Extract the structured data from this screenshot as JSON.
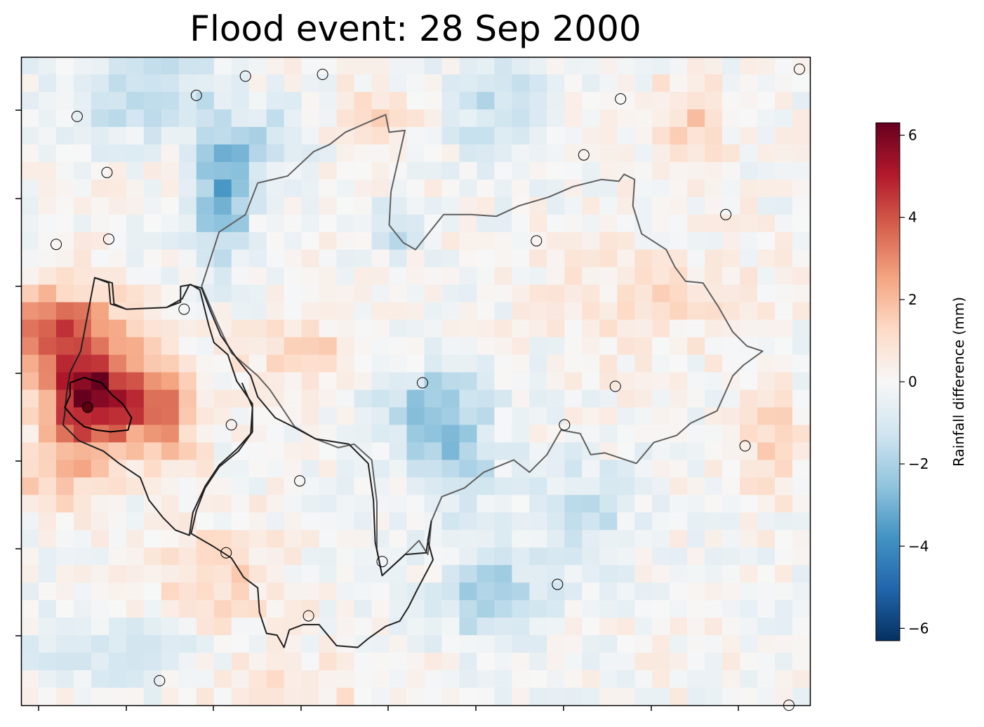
{
  "chart_data": {
    "type": "heatmap",
    "title": "Flood event: 28 Sep 2000",
    "xlabel": "",
    "ylabel": "",
    "grid": false,
    "grid_size": {
      "cols": 45,
      "rows": 37
    },
    "colormap": "RdBu_r",
    "colorbar": {
      "label": "Rainfall difference (mm)",
      "range": [
        -6.3,
        6.3
      ],
      "ticks": [
        -6,
        -4,
        -2,
        0,
        2,
        4,
        6
      ],
      "tick_labels": [
        "−6",
        "−4",
        "−2",
        "0",
        "2",
        "4",
        "6"
      ]
    },
    "hotspots": [
      {
        "col": 4,
        "row": 19.5,
        "value": 6.0,
        "spread_cols": 2.6,
        "spread_rows": 2.8,
        "description": "maximum positive difference"
      },
      {
        "col": 2,
        "row": 15.5,
        "value": 3.6,
        "spread_cols": 3.5,
        "spread_rows": 2.5
      },
      {
        "col": 8,
        "row": 20,
        "value": 3.0,
        "spread_cols": 2.2,
        "spread_rows": 3.0
      },
      {
        "col": 2,
        "row": 24,
        "value": 1.8,
        "spread_cols": 2.5,
        "spread_rows": 2
      },
      {
        "col": 11.5,
        "row": 8,
        "value": -3.2,
        "spread_cols": 1.6,
        "spread_rows": 3.5
      },
      {
        "col": 7,
        "row": 2,
        "value": -2.0,
        "spread_cols": 4,
        "spread_rows": 2.5
      },
      {
        "col": 14,
        "row": 5,
        "value": -1.6,
        "spread_cols": 3,
        "spread_rows": 2
      },
      {
        "col": 27,
        "row": 3,
        "value": -1.5,
        "spread_cols": 3,
        "spread_rows": 3
      },
      {
        "col": 21,
        "row": 10,
        "value": -1.8,
        "spread_cols": 1.3,
        "spread_rows": 1.3
      },
      {
        "col": 24.5,
        "row": 22,
        "value": -2.4,
        "spread_cols": 2.5,
        "spread_rows": 4
      },
      {
        "col": 22,
        "row": 20,
        "value": -1.4,
        "spread_cols": 3,
        "spread_rows": 2
      },
      {
        "col": 27,
        "row": 31,
        "value": -2.3,
        "spread_cols": 3,
        "spread_rows": 2.5
      },
      {
        "col": 32,
        "row": 26,
        "value": -1.5,
        "spread_cols": 3,
        "spread_rows": 3
      },
      {
        "col": 6,
        "row": 34,
        "value": -1.0,
        "spread_cols": 6,
        "spread_rows": 2
      },
      {
        "col": 38,
        "row": 4,
        "value": 1.5,
        "spread_cols": 2,
        "spread_rows": 3
      },
      {
        "col": 36,
        "row": 14,
        "value": 1.0,
        "spread_cols": 5,
        "spread_rows": 3
      },
      {
        "col": 16,
        "row": 17,
        "value": 1.5,
        "spread_cols": 3,
        "spread_rows": 2
      },
      {
        "col": 20,
        "row": 4,
        "value": 1.1,
        "spread_cols": 3,
        "spread_rows": 2
      },
      {
        "col": 11,
        "row": 30,
        "value": 1.3,
        "spread_cols": 4,
        "spread_rows": 3
      },
      {
        "col": 15,
        "row": 36,
        "value": 1.0,
        "spread_cols": 5,
        "spread_rows": 2
      },
      {
        "col": 43,
        "row": 22,
        "value": 1.2,
        "spread_cols": 2,
        "spread_rows": 3
      }
    ],
    "stations": [
      {
        "col": 12.8,
        "row": 1.1
      },
      {
        "col": 17.2,
        "row": 1.0
      },
      {
        "col": 44.4,
        "row": 0.7
      },
      {
        "col": 10.0,
        "row": 2.2
      },
      {
        "col": 34.2,
        "row": 2.4
      },
      {
        "col": 3.2,
        "row": 3.4
      },
      {
        "col": 32.1,
        "row": 5.6
      },
      {
        "col": 4.9,
        "row": 6.6
      },
      {
        "col": 40.2,
        "row": 9.0
      },
      {
        "col": 2.0,
        "row": 10.7
      },
      {
        "col": 5.0,
        "row": 10.4
      },
      {
        "col": 29.4,
        "row": 10.5
      },
      {
        "col": 9.3,
        "row": 14.4
      },
      {
        "col": 22.9,
        "row": 18.6
      },
      {
        "col": 33.9,
        "row": 18.8
      },
      {
        "col": 3.8,
        "row": 20.0,
        "fill": "#5a0011"
      },
      {
        "col": 12.0,
        "row": 21.0
      },
      {
        "col": 31.0,
        "row": 21.0
      },
      {
        "col": 41.3,
        "row": 22.2
      },
      {
        "col": 15.9,
        "row": 24.2
      },
      {
        "col": 11.7,
        "row": 28.3
      },
      {
        "col": 20.6,
        "row": 28.8
      },
      {
        "col": 30.6,
        "row": 30.1
      },
      {
        "col": 16.4,
        "row": 31.9
      },
      {
        "col": 7.9,
        "row": 35.6
      },
      {
        "col": 43.8,
        "row": 37.0
      }
    ],
    "catchments": [
      {
        "name": "",
        "color": "#5f5f5f",
        "points": [
          [
            10.3,
            13.1
          ],
          [
            11.3,
            10.0
          ],
          [
            12.8,
            9.0
          ],
          [
            13.5,
            7.2
          ],
          [
            15.2,
            6.8
          ],
          [
            16.7,
            5.4
          ],
          [
            17.6,
            5.0
          ],
          [
            18.5,
            4.3
          ],
          [
            20.1,
            3.6
          ],
          [
            20.8,
            3.3
          ],
          [
            21.0,
            4.3
          ],
          [
            21.9,
            4.2
          ],
          [
            21.1,
            7.7
          ],
          [
            21.0,
            9.6
          ],
          [
            21.8,
            10.6
          ],
          [
            22.5,
            11.0
          ],
          [
            24.1,
            9.0
          ],
          [
            25.7,
            9.0
          ],
          [
            27.1,
            9.1
          ],
          [
            28.4,
            8.5
          ],
          [
            30.1,
            8.0
          ],
          [
            31.5,
            7.4
          ],
          [
            33.1,
            7.0
          ],
          [
            34.1,
            7.1
          ],
          [
            34.4,
            6.7
          ],
          [
            35.0,
            7.0
          ],
          [
            34.9,
            8.5
          ],
          [
            35.4,
            10.1
          ],
          [
            36.8,
            11.0
          ],
          [
            37.3,
            12.0
          ],
          [
            37.9,
            12.8
          ],
          [
            38.9,
            12.9
          ],
          [
            39.8,
            14.3
          ],
          [
            40.6,
            15.7
          ],
          [
            41.4,
            16.5
          ],
          [
            42.3,
            16.8
          ],
          [
            41.2,
            17.6
          ],
          [
            40.6,
            18.2
          ],
          [
            39.7,
            20.2
          ],
          [
            38.2,
            20.9
          ],
          [
            37.4,
            21.6
          ],
          [
            36.1,
            22.0
          ],
          [
            35.1,
            23.2
          ],
          [
            33.3,
            22.6
          ],
          [
            32.5,
            22.7
          ],
          [
            31.9,
            21.5
          ],
          [
            30.8,
            21.3
          ],
          [
            30.0,
            22.7
          ],
          [
            29.0,
            23.7
          ],
          [
            28.1,
            23.0
          ],
          [
            26.4,
            23.7
          ],
          [
            25.3,
            24.6
          ],
          [
            24.0,
            25.1
          ],
          [
            23.4,
            26.5
          ],
          [
            23.3,
            27.7
          ],
          [
            23.2,
            28.4
          ],
          [
            22.7,
            27.6
          ],
          [
            21.7,
            28.6
          ],
          [
            20.6,
            29.6
          ],
          [
            20.3,
            28.1
          ],
          [
            20.3,
            27.3
          ],
          [
            20.3,
            25.4
          ],
          [
            20.0,
            23.0
          ],
          [
            19.0,
            22.1
          ],
          [
            18.1,
            22.3
          ],
          [
            16.8,
            21.8
          ],
          [
            15.6,
            21.1
          ],
          [
            14.2,
            19.0
          ],
          [
            13.5,
            18.2
          ],
          [
            12.0,
            16.9
          ],
          [
            11.2,
            15.2
          ],
          [
            10.3,
            13.1
          ]
        ]
      },
      {
        "name": "",
        "color": "#202020",
        "points": [
          [
            4.2,
            12.6
          ],
          [
            5.0,
            12.9
          ],
          [
            5.1,
            14.1
          ],
          [
            6.0,
            14.4
          ],
          [
            8.3,
            14.3
          ],
          [
            9.1,
            14.0
          ],
          [
            9.1,
            13.1
          ],
          [
            9.7,
            13.0
          ],
          [
            10.2,
            13.3
          ],
          [
            10.7,
            15.3
          ],
          [
            11.0,
            16.3
          ],
          [
            11.8,
            17.0
          ],
          [
            12.3,
            18.5
          ],
          [
            13.2,
            19.8
          ],
          [
            13.2,
            21.4
          ],
          [
            12.4,
            22.5
          ],
          [
            11.3,
            23.4
          ],
          [
            10.5,
            24.6
          ],
          [
            10.0,
            25.9
          ],
          [
            9.7,
            27.2
          ],
          [
            10.9,
            27.9
          ],
          [
            12.0,
            28.6
          ],
          [
            12.7,
            29.7
          ],
          [
            13.5,
            30.3
          ],
          [
            13.6,
            31.7
          ],
          [
            14.0,
            32.9
          ],
          [
            14.6,
            33.0
          ],
          [
            15.0,
            33.7
          ],
          [
            15.3,
            32.7
          ],
          [
            16.1,
            32.4
          ],
          [
            17.0,
            32.4
          ],
          [
            18.0,
            33.6
          ],
          [
            19.2,
            33.7
          ],
          [
            19.8,
            33.2
          ],
          [
            20.8,
            32.5
          ],
          [
            21.6,
            32.2
          ],
          [
            22.1,
            31.4
          ],
          [
            22.6,
            30.4
          ],
          [
            23.5,
            28.7
          ],
          [
            23.2,
            27.6
          ],
          [
            23.4,
            26.5
          ],
          [
            23.1,
            28.3
          ],
          [
            21.9,
            28.4
          ],
          [
            20.6,
            29.6
          ],
          [
            20.2,
            27.7
          ],
          [
            20.1,
            25.3
          ],
          [
            19.8,
            23.2
          ],
          [
            18.7,
            22.1
          ],
          [
            16.8,
            21.8
          ],
          [
            15.5,
            21.1
          ],
          [
            14.5,
            20.6
          ],
          [
            13.5,
            19.4
          ],
          [
            13.1,
            18.2
          ],
          [
            12.3,
            17.2
          ],
          [
            11.4,
            15.9
          ],
          [
            10.8,
            14.5
          ],
          [
            10.3,
            13.2
          ],
          [
            9.6,
            13.0
          ],
          [
            9.2,
            13.8
          ],
          [
            8.3,
            14.3
          ],
          [
            6.0,
            14.4
          ],
          [
            5.3,
            14.1
          ],
          [
            5.2,
            12.9
          ],
          [
            4.2,
            12.6
          ],
          [
            3.8,
            14.7
          ],
          [
            3.4,
            16.8
          ],
          [
            2.8,
            18.0
          ],
          [
            2.6,
            19.2
          ],
          [
            2.5,
            20.3
          ],
          [
            2.4,
            21.0
          ],
          [
            3.3,
            21.9
          ],
          [
            4.7,
            22.5
          ],
          [
            5.6,
            23.2
          ],
          [
            6.8,
            24.0
          ],
          [
            7.3,
            25.3
          ],
          [
            8.1,
            26.3
          ],
          [
            8.8,
            27.0
          ],
          [
            9.6,
            27.3
          ],
          [
            9.8,
            26.0
          ],
          [
            10.5,
            24.5
          ],
          [
            11.3,
            23.3
          ],
          [
            12.3,
            22.4
          ],
          [
            13.1,
            21.5
          ],
          [
            13.2,
            20.0
          ],
          [
            12.6,
            18.6
          ]
        ]
      },
      {
        "name": "",
        "color": "#000000",
        "points": [
          [
            2.8,
            18.6
          ],
          [
            3.6,
            18.3
          ],
          [
            4.6,
            18.6
          ],
          [
            5.2,
            19.3
          ],
          [
            5.8,
            19.8
          ],
          [
            6.3,
            20.6
          ],
          [
            6.1,
            21.3
          ],
          [
            5.1,
            21.4
          ],
          [
            4.3,
            21.3
          ],
          [
            3.6,
            21.1
          ],
          [
            3.0,
            20.6
          ],
          [
            2.5,
            20.0
          ],
          [
            2.8,
            19.3
          ],
          [
            2.8,
            18.6
          ]
        ]
      }
    ]
  }
}
